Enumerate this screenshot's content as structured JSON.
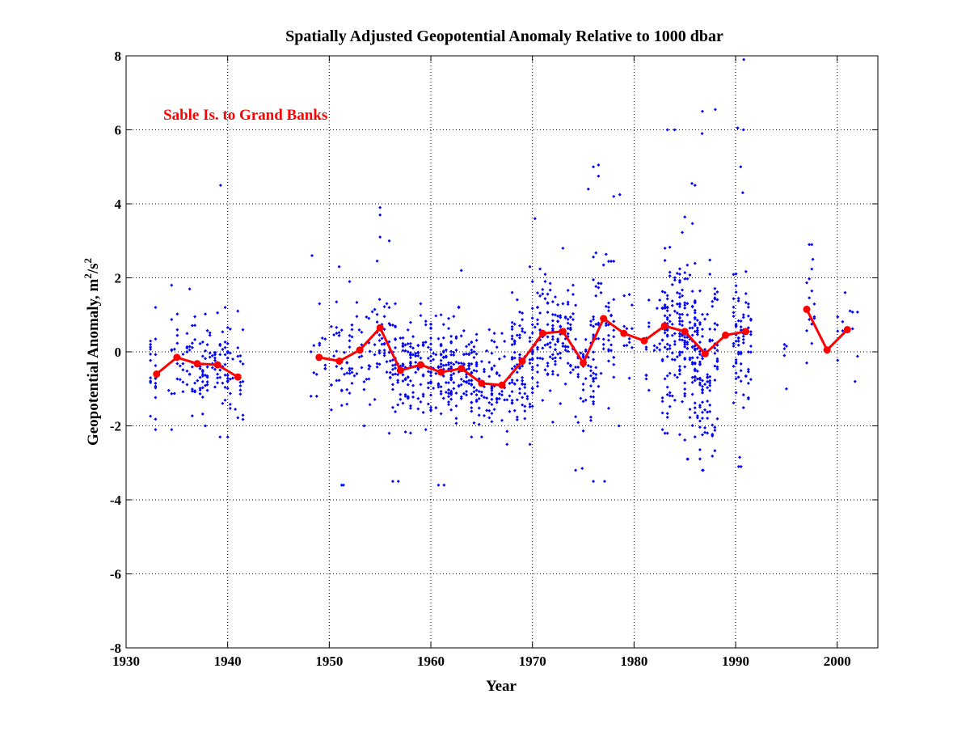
{
  "chart_data": {
    "type": "scatter",
    "title": "Spatially Adjusted Geopotential Anomaly Relative to 1000 dbar",
    "xlabel": "Year",
    "ylabel": "Geopotential Anomaly, m²/s²",
    "ylabel_parts": [
      "Geopotential Anomaly, m",
      "2",
      "/s",
      "2"
    ],
    "xlim": [
      1930,
      2004
    ],
    "ylim": [
      -8,
      8
    ],
    "x_ticks": [
      1930,
      1940,
      1950,
      1960,
      1970,
      1980,
      1990,
      2000
    ],
    "y_ticks": [
      -8,
      -6,
      -4,
      -2,
      0,
      2,
      4,
      6,
      8
    ],
    "grid": true,
    "annotation": "Sable Is. to Grand Banks",
    "colors": {
      "points": "#0000ff",
      "mean_line": "#ff0000",
      "annotation": "#ff0000",
      "axes": "#000000"
    },
    "scatter_clusters": [
      {
        "x": [
          1932.4,
          1932.9
        ],
        "center": -0.6,
        "spread": 0.85,
        "n": 22,
        "ymin": -2.1,
        "ymax": 1.2
      },
      {
        "x": [
          1934.2,
          1935.6
        ],
        "center": -0.1,
        "spread": 0.75,
        "n": 22,
        "ymin": -2.1,
        "ymax": 1.8
      },
      {
        "x": [
          1936.0,
          1937.8
        ],
        "center": -0.35,
        "spread": 0.7,
        "n": 55,
        "ymin": -2.0,
        "ymax": 1.7
      },
      {
        "x": [
          1938.0,
          1940.0
        ],
        "center": -0.35,
        "spread": 0.7,
        "n": 55,
        "ymin": -2.3,
        "ymax": 1.2
      },
      {
        "x": [
          1940.0,
          1941.5
        ],
        "center": -0.55,
        "spread": 0.65,
        "n": 28,
        "ymin": -2.3,
        "ymax": 1.1
      },
      {
        "x": [
          1948.2,
          1949.6
        ],
        "center": -0.2,
        "spread": 0.8,
        "n": 14,
        "ymin": -1.2,
        "ymax": 1.3
      },
      {
        "x": [
          1950.2,
          1952.0
        ],
        "center": -0.3,
        "spread": 0.9,
        "n": 34,
        "ymin": -3.6,
        "ymax": 2.3
      },
      {
        "x": [
          1952.0,
          1953.9
        ],
        "center": 0.05,
        "spread": 0.9,
        "n": 32,
        "ymin": -2.0,
        "ymax": 1.9
      },
      {
        "x": [
          1954.0,
          1955.9
        ],
        "center": 0.3,
        "spread": 0.95,
        "n": 40,
        "ymin": -2.2,
        "ymax": 3.0
      },
      {
        "x": [
          1956.0,
          1958.0
        ],
        "center": -0.45,
        "spread": 0.8,
        "n": 75,
        "ymin": -3.5,
        "ymax": 1.3
      },
      {
        "x": [
          1958.0,
          1960.0
        ],
        "center": -0.35,
        "spread": 0.7,
        "n": 70,
        "ymin": -2.1,
        "ymax": 1.3
      },
      {
        "x": [
          1960.0,
          1962.0
        ],
        "center": -0.6,
        "spread": 0.75,
        "n": 80,
        "ymin": -3.6,
        "ymax": 1.0
      },
      {
        "x": [
          1962.0,
          1964.0
        ],
        "center": -0.5,
        "spread": 0.8,
        "n": 80,
        "ymin": -2.3,
        "ymax": 2.2
      },
      {
        "x": [
          1964.0,
          1966.0
        ],
        "center": -0.85,
        "spread": 0.7,
        "n": 60,
        "ymin": -2.3,
        "ymax": 0.6
      },
      {
        "x": [
          1966.0,
          1968.0
        ],
        "center": -0.85,
        "spread": 0.65,
        "n": 40,
        "ymin": -2.5,
        "ymax": 0.5
      },
      {
        "x": [
          1968.0,
          1970.0
        ],
        "center": -0.3,
        "spread": 0.9,
        "n": 80,
        "ymin": -2.5,
        "ymax": 2.3
      },
      {
        "x": [
          1970.0,
          1972.0
        ],
        "center": 0.5,
        "spread": 0.9,
        "n": 70,
        "ymin": -1.9,
        "ymax": 3.6
      },
      {
        "x": [
          1972.0,
          1974.0
        ],
        "center": 0.5,
        "spread": 0.8,
        "n": 70,
        "ymin": -1.4,
        "ymax": 2.8
      },
      {
        "x": [
          1974.0,
          1976.0
        ],
        "center": -0.4,
        "spread": 1.0,
        "n": 55,
        "ymin": -3.2,
        "ymax": 1.8
      },
      {
        "x": [
          1976.0,
          1978.0
        ],
        "center": 0.8,
        "spread": 1.3,
        "n": 55,
        "ymin": -3.5,
        "ymax": 5.0
      },
      {
        "x": [
          1978.0,
          1979.8
        ],
        "center": 0.5,
        "spread": 1.0,
        "n": 18,
        "ymin": -2.0,
        "ymax": 4.2
      },
      {
        "x": [
          1981.2,
          1982.8
        ],
        "center": 0.2,
        "spread": 0.9,
        "n": 22,
        "ymin": -2.1,
        "ymax": 1.4
      },
      {
        "x": [
          1982.8,
          1984.5
        ],
        "center": 0.5,
        "spread": 1.3,
        "n": 85,
        "ymin": -2.2,
        "ymax": 6.0
      },
      {
        "x": [
          1984.5,
          1986.0
        ],
        "center": 0.4,
        "spread": 1.3,
        "n": 110,
        "ymin": -2.9,
        "ymax": 4.5
      },
      {
        "x": [
          1986.0,
          1988.2
        ],
        "center": -0.2,
        "spread": 1.3,
        "n": 120,
        "ymin": -3.2,
        "ymax": 6.5
      },
      {
        "x": [
          1989.8,
          1991.5
        ],
        "center": 0.3,
        "spread": 1.1,
        "n": 75,
        "ymin": -3.1,
        "ymax": 6.0
      },
      {
        "x": [
          1994.8,
          1995.0
        ],
        "center": -0.2,
        "spread": 0.5,
        "n": 5,
        "ymin": -1.0,
        "ymax": 0.2
      },
      {
        "x": [
          1997.0,
          1998.0
        ],
        "center": 1.0,
        "spread": 1.0,
        "n": 14,
        "ymin": -0.3,
        "ymax": 2.9
      },
      {
        "x": [
          1999.8,
          2002.0
        ],
        "center": 0.3,
        "spread": 0.6,
        "n": 12,
        "ymin": -0.8,
        "ymax": 1.6
      }
    ],
    "scatter_outliers": [
      {
        "x": 1939.3,
        "y": 4.5
      },
      {
        "x": 1948.3,
        "y": 2.6
      },
      {
        "x": 1955.0,
        "y": 3.9
      },
      {
        "x": 1955.0,
        "y": 3.7
      },
      {
        "x": 1955.0,
        "y": 3.1
      },
      {
        "x": 1990.8,
        "y": 7.9
      },
      {
        "x": 1988.0,
        "y": 6.55
      },
      {
        "x": 1984.0,
        "y": 6.0
      },
      {
        "x": 1986.7,
        "y": 5.9
      },
      {
        "x": 1990.2,
        "y": 6.05
      },
      {
        "x": 1976.5,
        "y": 5.05
      },
      {
        "x": 1976.5,
        "y": 4.75
      },
      {
        "x": 1975.5,
        "y": 4.4
      },
      {
        "x": 1978.6,
        "y": 4.25
      },
      {
        "x": 1985.7,
        "y": 4.55
      },
      {
        "x": 1990.5,
        "y": 5.0
      },
      {
        "x": 1990.7,
        "y": 4.3
      },
      {
        "x": 1961.3,
        "y": -3.6
      },
      {
        "x": 1951.4,
        "y": -3.6
      },
      {
        "x": 1956.8,
        "y": -3.5
      },
      {
        "x": 1977.1,
        "y": -3.5
      },
      {
        "x": 1974.9,
        "y": -3.15
      },
      {
        "x": 1985.3,
        "y": -2.9
      },
      {
        "x": 1986.8,
        "y": -3.2
      },
      {
        "x": 1990.3,
        "y": -3.1
      },
      {
        "x": 1990.4,
        "y": -2.85
      },
      {
        "x": 1997.5,
        "y": 2.9
      },
      {
        "x": 1997.6,
        "y": 2.5
      }
    ],
    "series": [
      {
        "x": [
          1933,
          1935,
          1937,
          1939,
          1941
        ],
        "y": [
          -0.6,
          -0.15,
          -0.32,
          -0.35,
          -0.68
        ]
      },
      {
        "x": [
          1949,
          1951,
          1953,
          1955,
          1957,
          1959,
          1961,
          1963,
          1965,
          1967,
          1969,
          1971,
          1973,
          1975,
          1977,
          1979,
          1981,
          1983,
          1985,
          1987,
          1989,
          1991
        ],
        "y": [
          -0.15,
          -0.25,
          0.05,
          0.65,
          -0.5,
          -0.35,
          -0.55,
          -0.45,
          -0.85,
          -0.9,
          -0.25,
          0.5,
          0.55,
          -0.3,
          0.9,
          0.5,
          0.3,
          0.7,
          0.55,
          -0.05,
          0.45,
          0.55
        ]
      },
      {
        "x": [
          1997,
          1999,
          2001
        ],
        "y": [
          1.15,
          0.05,
          0.6
        ]
      }
    ]
  }
}
